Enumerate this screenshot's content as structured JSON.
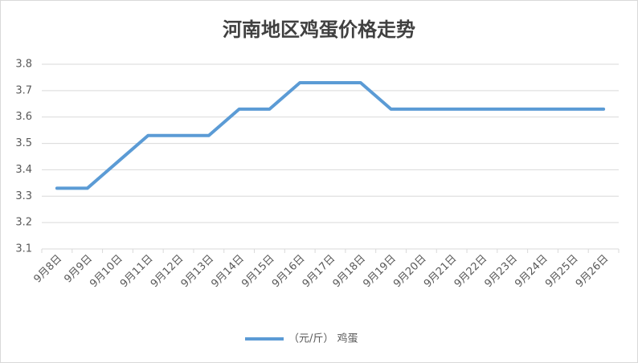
{
  "chart_data": {
    "type": "line",
    "title": "河南地区鸡蛋价格走势",
    "categories": [
      "9月8日",
      "9月9日",
      "9月10日",
      "9月11日",
      "9月12日",
      "9月13日",
      "9月14日",
      "9月15日",
      "9月16日",
      "9月17日",
      "9月18日",
      "9月19日",
      "9月20日",
      "9月21日",
      "9月22日",
      "9月23日",
      "9月24日",
      "9月25日",
      "9月26日"
    ],
    "series": [
      {
        "name": "（元/斤） 鸡蛋",
        "color": "#5b9bd5",
        "values": [
          3.33,
          3.33,
          3.43,
          3.53,
          3.53,
          3.53,
          3.63,
          3.63,
          3.73,
          3.73,
          3.73,
          3.63,
          3.63,
          3.63,
          3.63,
          3.63,
          3.63,
          3.63,
          3.63
        ]
      }
    ],
    "ylim": [
      3.1,
      3.8
    ],
    "yticks": [
      3.1,
      3.2,
      3.3,
      3.4,
      3.5,
      3.6,
      3.7,
      3.8
    ],
    "grid": true,
    "legend": "bottom"
  }
}
